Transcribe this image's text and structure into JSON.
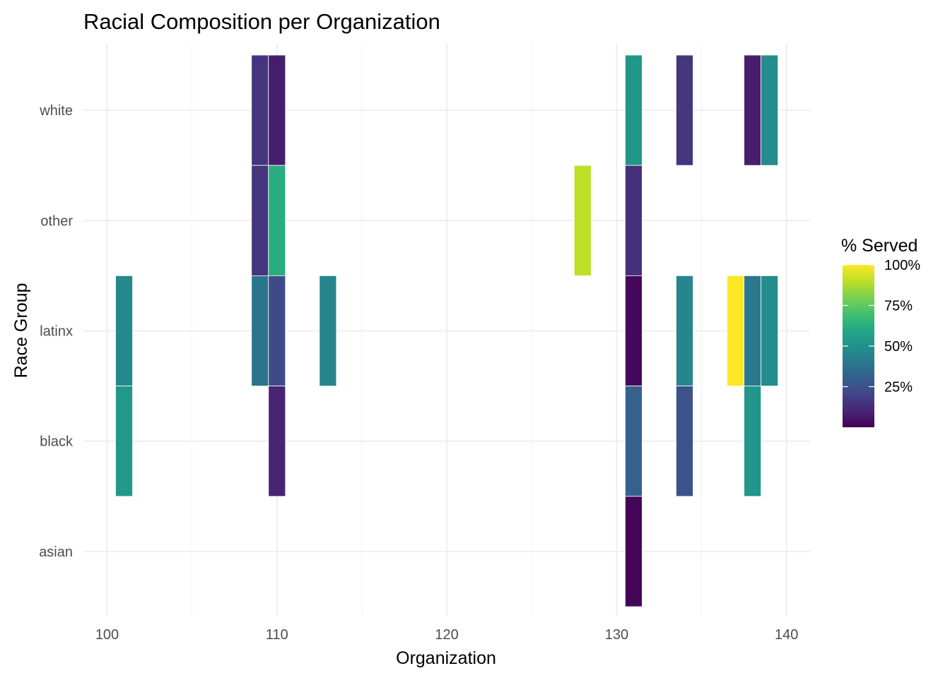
{
  "chart_data": {
    "type": "heatmap",
    "title": "Racial Composition per Organization",
    "xlabel": "Organization",
    "ylabel": "Race Group",
    "x_ticks": [
      100,
      110,
      120,
      130,
      140
    ],
    "x_tick_labels": [
      "100",
      "110",
      "120",
      "130",
      "140"
    ],
    "xlim": [
      99.5,
      141
    ],
    "categories_y": [
      "asian",
      "black",
      "latinx",
      "other",
      "white"
    ],
    "legend": {
      "title": "% Served",
      "position": "right",
      "breaks": [
        25,
        50,
        75,
        100
      ],
      "labels": [
        "25%",
        "50%",
        "75%",
        "100%"
      ],
      "range": [
        0,
        100
      ],
      "colors": [
        "#440154",
        "#482475",
        "#414487",
        "#355f8d",
        "#2a788e",
        "#21918c",
        "#22a884",
        "#44bf70",
        "#7ad151",
        "#bddf26",
        "#fde725"
      ]
    },
    "cells": [
      {
        "org": 101,
        "race": "latinx",
        "value": 47
      },
      {
        "org": 101,
        "race": "black",
        "value": 53
      },
      {
        "org": 109,
        "race": "white",
        "value": 15
      },
      {
        "org": 109,
        "race": "other",
        "value": 15
      },
      {
        "org": 109,
        "race": "latinx",
        "value": 38
      },
      {
        "org": 110,
        "race": "white",
        "value": 8
      },
      {
        "org": 110,
        "race": "other",
        "value": 62
      },
      {
        "org": 110,
        "race": "latinx",
        "value": 23
      },
      {
        "org": 110,
        "race": "black",
        "value": 10
      },
      {
        "org": 113,
        "race": "latinx",
        "value": 45
      },
      {
        "org": 128,
        "race": "other",
        "value": 90
      },
      {
        "org": 131,
        "race": "white",
        "value": 52
      },
      {
        "org": 131,
        "race": "other",
        "value": 14
      },
      {
        "org": 131,
        "race": "latinx",
        "value": 2
      },
      {
        "org": 131,
        "race": "black",
        "value": 31
      },
      {
        "org": 131,
        "race": "asian",
        "value": 1
      },
      {
        "org": 134,
        "race": "white",
        "value": 16
      },
      {
        "org": 134,
        "race": "latinx",
        "value": 45
      },
      {
        "org": 134,
        "race": "black",
        "value": 25
      },
      {
        "org": 137,
        "race": "latinx",
        "value": 100
      },
      {
        "org": 138,
        "race": "white",
        "value": 8
      },
      {
        "org": 138,
        "race": "latinx",
        "value": 40
      },
      {
        "org": 138,
        "race": "black",
        "value": 52
      },
      {
        "org": 139,
        "race": "white",
        "value": 48
      },
      {
        "org": 139,
        "race": "latinx",
        "value": 48
      }
    ]
  }
}
